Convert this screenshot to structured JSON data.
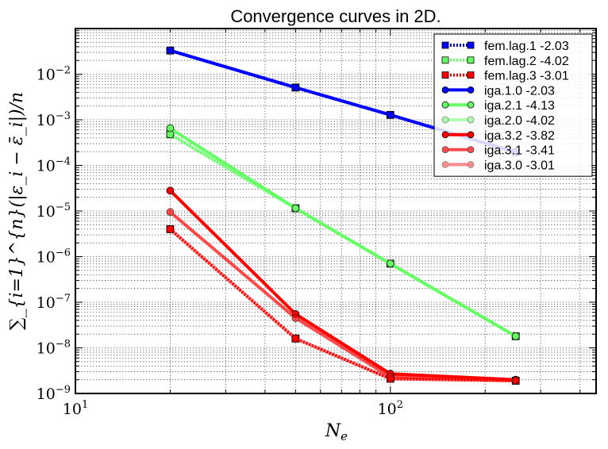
{
  "chart_data": {
    "type": "line",
    "title": "Convergence curves in 2D.",
    "xlabel": "N_e",
    "ylabel": "∑_{i=1}^{n}(|ε_i − ε̄_i|)/n",
    "xscale": "log",
    "yscale": "log",
    "xlim": [
      10,
      450
    ],
    "ylim": [
      1e-09,
      0.1
    ],
    "grid": true,
    "legend_position": "top-right",
    "x_ticks": [
      {
        "base": "10",
        "exp": "1"
      },
      {
        "base": "10",
        "exp": "2"
      }
    ],
    "y_ticks": [
      {
        "value": 1e-09,
        "base": "10",
        "exp": "−9"
      },
      {
        "value": 1e-08,
        "base": "10",
        "exp": "−8"
      },
      {
        "value": 1e-07,
        "base": "10",
        "exp": "−7"
      },
      {
        "value": 1e-06,
        "base": "10",
        "exp": "−6"
      },
      {
        "value": 1e-05,
        "base": "10",
        "exp": "−5"
      },
      {
        "value": 0.0001,
        "base": "10",
        "exp": "−4"
      },
      {
        "value": 0.001,
        "base": "10",
        "exp": "−3"
      },
      {
        "value": 0.01,
        "base": "10",
        "exp": "−2"
      }
    ],
    "series": [
      {
        "name": "fem.lag.1 -2.03",
        "color": "#0000ff",
        "opacity": 1.0,
        "style": "dotted",
        "marker": "square",
        "x": [
          20,
          50,
          100,
          250
        ],
        "y": [
          0.033,
          0.0051,
          0.00128,
          0.000195
        ]
      },
      {
        "name": "fem.lag.2 -4.02",
        "color": "#66ff66",
        "opacity": 1.0,
        "style": "dotted",
        "marker": "square",
        "x": [
          20,
          50,
          100,
          250
        ],
        "y": [
          0.00048,
          1.15e-05,
          7e-07,
          1.8e-08
        ]
      },
      {
        "name": "fem.lag.3 -3.01",
        "color": "#ff0000",
        "opacity": 1.0,
        "style": "dotted",
        "marker": "square",
        "x": [
          20,
          50,
          100,
          250
        ],
        "y": [
          4e-06,
          1.6e-08,
          2.1e-09,
          1.9e-09
        ]
      },
      {
        "name": "iga.1.0 -2.03",
        "color": "#0000ff",
        "opacity": 1.0,
        "style": "solid",
        "marker": "circle",
        "x": [
          20,
          50,
          100,
          250
        ],
        "y": [
          0.033,
          0.0051,
          0.00128,
          0.000195
        ]
      },
      {
        "name": "iga.2.1 -4.13",
        "color": "#66ff66",
        "opacity": 1.0,
        "style": "solid",
        "marker": "circle",
        "x": [
          20,
          50,
          100,
          250
        ],
        "y": [
          0.00065,
          1.15e-05,
          7e-07,
          1.8e-08
        ]
      },
      {
        "name": "iga.2.0 -4.02",
        "color": "#66ff66",
        "opacity": 0.5,
        "style": "solid",
        "marker": "circle",
        "x": [
          20,
          50,
          100,
          250
        ],
        "y": [
          0.00048,
          1.15e-05,
          7e-07,
          1.8e-08
        ]
      },
      {
        "name": "iga.3.2 -3.82",
        "color": "#ff0000",
        "opacity": 1.0,
        "style": "solid",
        "marker": "circle",
        "x": [
          20,
          50,
          100,
          250
        ],
        "y": [
          2.8e-05,
          5.5e-08,
          2.7e-09,
          2e-09
        ]
      },
      {
        "name": "iga.3.1 -3.41",
        "color": "#ff0000",
        "opacity": 0.7,
        "style": "solid",
        "marker": "circle",
        "x": [
          20,
          50,
          100,
          250
        ],
        "y": [
          9.5e-06,
          4.5e-08,
          2.3e-09,
          1.95e-09
        ]
      },
      {
        "name": "iga.3.0 -3.01",
        "color": "#ff0000",
        "opacity": 0.45,
        "style": "solid",
        "marker": "circle",
        "x": [
          20,
          50,
          100,
          250
        ],
        "y": [
          4e-06,
          1.6e-08,
          2.1e-09,
          1.9e-09
        ]
      }
    ]
  }
}
